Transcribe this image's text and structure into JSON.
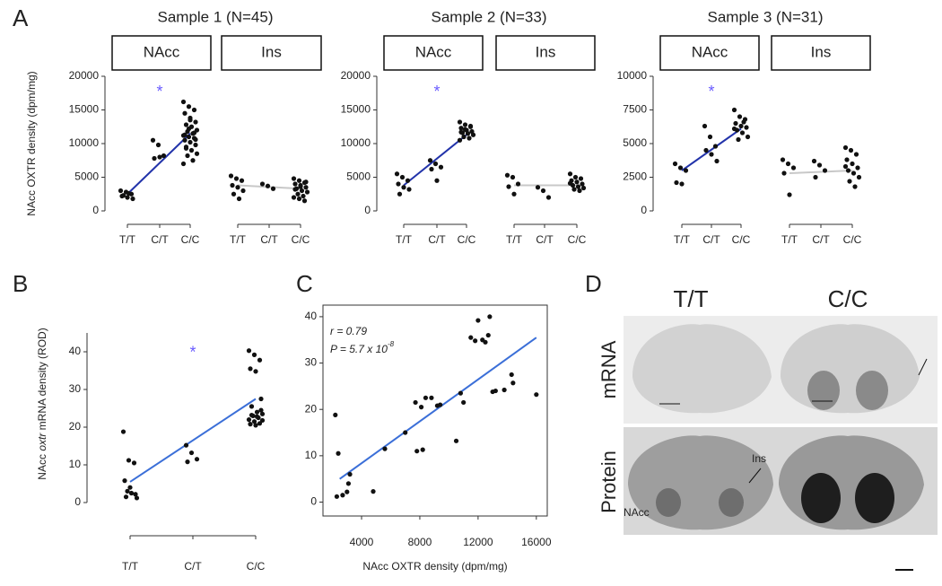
{
  "labels": {
    "panel_letters": [
      "A",
      "B",
      "C",
      "D"
    ],
    "sample_titles": [
      "Sample 1 (N=45)",
      "Sample 2 (N=33)",
      "Sample 3 (N=31)"
    ],
    "ylabel_A": "NAcc OXTR density (dpm/mg)"
  },
  "panel_d": {
    "columns": [
      "T/T",
      "C/C"
    ],
    "rows": [
      "mRNA",
      "Protein"
    ],
    "annotations": [
      "Ins",
      "NAcc"
    ]
  },
  "chart_data": [
    {
      "type": "strip",
      "title": "NAcc",
      "categories": [
        "T/T",
        "C/T",
        "C/C"
      ],
      "ylim": [
        0,
        20000
      ],
      "yticks": [
        0,
        5000,
        10000,
        15000,
        20000
      ],
      "annotation": "*",
      "fit": [
        2500,
        11500
      ],
      "fit_color": "#2233aa",
      "groups": [
        [
          3000,
          2800,
          2500,
          2200,
          2000,
          1800,
          2300,
          2600
        ],
        [
          10500,
          9800,
          8200,
          7800,
          8000
        ],
        [
          16200,
          15500,
          15000,
          14500,
          13800,
          13200,
          12800,
          12500,
          12000,
          11800,
          11500,
          11200,
          11000,
          10800,
          10500,
          10200,
          9800,
          9500,
          9000,
          8500,
          8200,
          7500,
          7000,
          12200,
          11600,
          11300,
          13500,
          10600,
          9300
        ]
      ]
    },
    {
      "type": "strip",
      "title": "Ins",
      "categories": [
        "T/T",
        "C/T",
        "C/C"
      ],
      "ylim": [
        0,
        20000
      ],
      "fit": [
        3800,
        3300
      ],
      "fit_color": "#c8c8c8",
      "groups": [
        [
          5200,
          4800,
          4500,
          3800,
          3500,
          3000,
          2500,
          1800
        ],
        [
          4000,
          3700,
          3300
        ],
        [
          4800,
          4500,
          4200,
          4000,
          3800,
          3500,
          3300,
          3000,
          2800,
          2500,
          2200,
          2000,
          1800,
          1500,
          3200,
          3600,
          4300
        ]
      ]
    },
    {
      "type": "strip",
      "title": "NAcc",
      "categories": [
        "T/T",
        "C/T",
        "C/C"
      ],
      "ylim": [
        0,
        20000
      ],
      "yticks": [
        0,
        5000,
        10000,
        15000,
        20000
      ],
      "annotation": "*",
      "fit": [
        3800,
        11300
      ],
      "fit_color": "#2233aa",
      "groups": [
        [
          5500,
          5000,
          4500,
          4000,
          3500,
          3200,
          2500
        ],
        [
          7500,
          7000,
          6500,
          6200,
          4500
        ],
        [
          13200,
          12800,
          12500,
          12300,
          12000,
          11800,
          11600,
          11500,
          11300,
          11000,
          10800,
          10500,
          12100,
          12600,
          11700
        ]
      ]
    },
    {
      "type": "strip",
      "title": "Ins",
      "categories": [
        "T/T",
        "C/T",
        "C/C"
      ],
      "ylim": [
        0,
        20000
      ],
      "fit": [
        3800,
        3800
      ],
      "fit_color": "#c8c8c8",
      "groups": [
        [
          5300,
          5000,
          4000,
          3600,
          2500
        ],
        [
          3500,
          3000,
          2000
        ],
        [
          5500,
          5000,
          4800,
          4500,
          4300,
          4000,
          3800,
          3600,
          3400,
          3200,
          3000,
          4100
        ]
      ]
    },
    {
      "type": "strip",
      "title": "NAcc",
      "categories": [
        "T/T",
        "C/T",
        "C/C"
      ],
      "ylim": [
        0,
        10000
      ],
      "yticks": [
        0,
        2500,
        5000,
        7500,
        10000
      ],
      "annotation": "*",
      "fit": [
        3000,
        6100
      ],
      "fit_color": "#2233aa",
      "groups": [
        [
          3500,
          3200,
          3000,
          2100,
          2000
        ],
        [
          6300,
          5500,
          4800,
          4500,
          4200,
          3700
        ],
        [
          7500,
          7000,
          6800,
          6500,
          6300,
          6200,
          6000,
          5800,
          5500,
          5300,
          6600,
          6100
        ]
      ]
    },
    {
      "type": "strip",
      "title": "Ins",
      "categories": [
        "T/T",
        "C/T",
        "C/C"
      ],
      "ylim": [
        0,
        10000
      ],
      "fit": [
        2800,
        3000
      ],
      "fit_color": "#c8c8c8",
      "groups": [
        [
          3800,
          3500,
          3200,
          2800,
          1200
        ],
        [
          3700,
          3400,
          3000,
          2500
        ],
        [
          4700,
          4500,
          4200,
          3800,
          3500,
          3200,
          3000,
          2800,
          2500,
          2200,
          1800,
          3300
        ]
      ]
    },
    {
      "type": "strip",
      "ylabel": [
        "NAcc ",
        "oxtr",
        " mRNA density (ROD)"
      ],
      "categories": [
        "T/T",
        "C/T",
        "C/C"
      ],
      "ylim": [
        0,
        45
      ],
      "yticks": [
        0,
        10,
        20,
        30,
        40
      ],
      "annotation": "*",
      "fit": [
        5.5,
        27.5
      ],
      "fit_color": "#3b6fd8",
      "groups": [
        [
          18.8,
          11.2,
          10.5,
          5.8,
          4,
          2.2,
          1.5,
          2.5,
          1.2,
          3
        ],
        [
          15.2,
          13.2,
          11.5,
          10.8
        ],
        [
          40.3,
          39.2,
          37.8,
          35.5,
          34.8,
          27.5,
          25.5,
          24,
          23.5,
          23,
          22.5,
          22,
          21.5,
          21,
          20.8,
          20.5,
          24.5,
          23.2,
          22.8,
          21.8
        ]
      ]
    },
    {
      "type": "scatter",
      "xlabel": "NAcc OXTR density (dpm/mg)",
      "xlim": [
        1350,
        16750
      ],
      "ylim": [
        -3,
        42.5
      ],
      "xticks": [
        4000,
        8000,
        12000,
        16000
      ],
      "yticks": [
        0,
        10,
        20,
        30,
        40
      ],
      "stats": {
        "r": "r = 0.79",
        "p": "P = 5.7 x 10",
        "p_exponent": "-8"
      },
      "fit": {
        "x": [
          2500,
          16000
        ],
        "y": [
          5,
          35.5
        ]
      },
      "fit_color": "#3b6fd8",
      "x": [
        2200,
        2400,
        2300,
        2700,
        3000,
        3100,
        3200,
        4800,
        5600,
        7000,
        7700,
        7800,
        8200,
        8100,
        8400,
        8800,
        9200,
        9400,
        10500,
        10800,
        11500,
        11800,
        12000,
        12300,
        12500,
        12800,
        13000,
        13200,
        13800,
        14300,
        14400,
        16000,
        11000,
        12700
      ],
      "y": [
        18.8,
        10.5,
        1.2,
        1.5,
        2.2,
        4,
        6,
        2.3,
        11.5,
        15,
        21.5,
        11,
        11.3,
        20.5,
        22.5,
        22.5,
        20.8,
        21,
        13.2,
        23.5,
        35.5,
        34.8,
        39.2,
        35,
        34.5,
        40,
        23.8,
        24,
        24.2,
        27.5,
        25.7,
        23.2,
        21.5,
        36
      ]
    }
  ]
}
